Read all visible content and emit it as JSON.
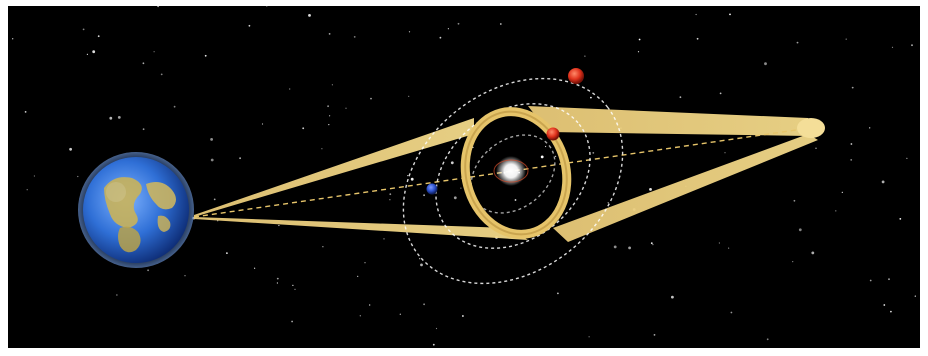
{
  "scene": {
    "description_visible_text": "",
    "colors": {
      "space": "#000000",
      "beam": "#e6c46a",
      "beam_dark": "#b8913e",
      "orbit": "#ffffff",
      "earth_ocean": "#2f6fd6",
      "earth_land": "#c9b25a",
      "star_core": "#ffffff",
      "planet_red": "#e0321c",
      "planet_blue": "#2c4fc8"
    },
    "objects": {
      "earth": "earth-globe",
      "host_star": "host-star",
      "planets": [
        "outer-red-planet",
        "inner-red-planet",
        "blue-planet"
      ],
      "ring": "einstein-ring",
      "beam": "light-cone"
    }
  }
}
